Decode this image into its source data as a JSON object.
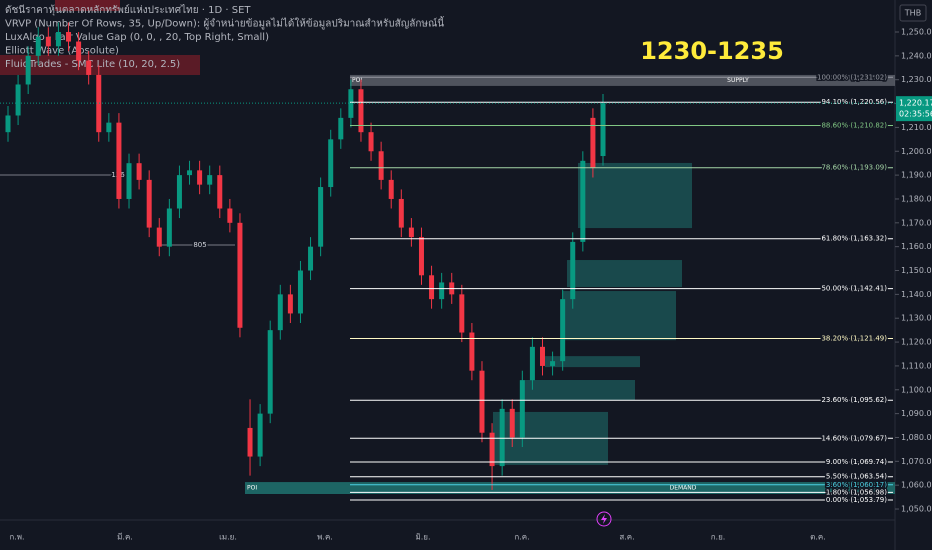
{
  "chart_data": {
    "type": "candlestick",
    "legend_lines": [
      "ดัชนีราคาหุ้นตลาดหลักทรัพย์แห่งประเทศไทย · 1D · SET",
      "VRVP (Number Of Rows, 35, Up/Down): ผู้จำหน่ายข้อมูลไม่ได้ให้ข้อมูลปริมาณสำหรับสัญลักษณ์นี้",
      "LuxAlgo - Fair Value Gap (0, 0, , 20, Top Right, Small)",
      "Elliott Wave (Absolute)",
      "FluidTrades - SMC Lite (10, 20, 2.5)"
    ],
    "annotation": "1230-1235",
    "currency": "THB",
    "categories": [
      "ก.พ.",
      "มี.ค.",
      "เม.ย.",
      "พ.ค.",
      "มิ.ย.",
      "ก.ค.",
      "ส.ค.",
      "ก.ย.",
      "ต.ค."
    ],
    "up_color": "#089981",
    "down_color": "#f23645",
    "open": [
      1208,
      1215,
      1228,
      1240,
      1248,
      1244,
      1250,
      1246,
      1238,
      1232,
      1208,
      1212,
      1180,
      1195,
      1188,
      1168,
      1160,
      1176,
      1190,
      1192,
      1186,
      1190,
      1176,
      1170,
      1084,
      1072,
      1090,
      1125,
      1140,
      1132,
      1150,
      1160,
      1185,
      1205,
      1214,
      1226,
      1208,
      1200,
      1188,
      1180,
      1168,
      1164,
      1148,
      1138,
      1145,
      1140,
      1124,
      1108,
      1082,
      1068,
      1092,
      1080,
      1104,
      1118,
      1110,
      1112,
      1138,
      1162,
      1214,
      1198
    ],
    "high": [
      1219,
      1232,
      1244,
      1252,
      1252,
      1254,
      1254,
      1250,
      1242,
      1236,
      1216,
      1216,
      1199,
      1199,
      1192,
      1172,
      1180,
      1194,
      1196,
      1196,
      1194,
      1194,
      1180,
      1174,
      1096,
      1094,
      1129,
      1144,
      1144,
      1154,
      1164,
      1189,
      1209,
      1218,
      1230,
      1230,
      1212,
      1204,
      1192,
      1184,
      1172,
      1168,
      1152,
      1149,
      1149,
      1144,
      1128,
      1112,
      1086,
      1096,
      1096,
      1108,
      1122,
      1122,
      1116,
      1142,
      1166,
      1200,
      1218,
      1224
    ],
    "low": [
      1204,
      1211,
      1224,
      1236,
      1240,
      1240,
      1242,
      1234,
      1228,
      1204,
      1204,
      1176,
      1176,
      1184,
      1164,
      1156,
      1156,
      1172,
      1186,
      1182,
      1182,
      1172,
      1166,
      1122,
      1064,
      1068,
      1086,
      1121,
      1128,
      1128,
      1146,
      1156,
      1181,
      1201,
      1210,
      1204,
      1196,
      1184,
      1176,
      1164,
      1160,
      1144,
      1134,
      1134,
      1136,
      1120,
      1104,
      1078,
      1058,
      1064,
      1076,
      1076,
      1100,
      1106,
      1106,
      1108,
      1134,
      1158,
      1189,
      1194
    ],
    "close": [
      1215,
      1228,
      1240,
      1248,
      1244,
      1250,
      1246,
      1238,
      1232,
      1208,
      1212,
      1180,
      1195,
      1188,
      1168,
      1160,
      1176,
      1190,
      1192,
      1186,
      1190,
      1176,
      1170,
      1126,
      1072,
      1090,
      1125,
      1140,
      1132,
      1150,
      1160,
      1185,
      1205,
      1214,
      1226,
      1208,
      1200,
      1188,
      1180,
      1168,
      1164,
      1148,
      1138,
      1145,
      1140,
      1124,
      1108,
      1082,
      1068,
      1092,
      1080,
      1104,
      1118,
      1110,
      1112,
      1138,
      1162,
      1196,
      1193,
      1220.17
    ],
    "last_price": {
      "value": 1220.17,
      "label": "1,220.17"
    },
    "countdown": "02:35:56",
    "ylim": [
      1045.4,
      1263.42
    ],
    "yticks": [
      {
        "value": 1050,
        "label": "1,050.00"
      },
      {
        "value": 1060,
        "label": "1,060.00"
      },
      {
        "value": 1070,
        "label": "1,070.00"
      },
      {
        "value": 1080,
        "label": "1,080.00"
      },
      {
        "value": 1090,
        "label": "1,090.00"
      },
      {
        "value": 1100,
        "label": "1,100.00"
      },
      {
        "value": 1110,
        "label": "1,110.00"
      },
      {
        "value": 1120,
        "label": "1,120.00"
      },
      {
        "value": 1130,
        "label": "1,130.00"
      },
      {
        "value": 1140,
        "label": "1,140.00"
      },
      {
        "value": 1150,
        "label": "1,150.00"
      },
      {
        "value": 1160,
        "label": "1,160.00"
      },
      {
        "value": 1170,
        "label": "1,170.00"
      },
      {
        "value": 1180,
        "label": "1,180.00"
      },
      {
        "value": 1190,
        "label": "1,190.00"
      },
      {
        "value": 1200,
        "label": "1,200.00"
      },
      {
        "value": 1210,
        "label": "1,210.00"
      },
      {
        "value": 1220,
        "label": "1,220.00"
      },
      {
        "value": 1230,
        "label": "1,230.00"
      },
      {
        "value": 1240,
        "label": "1,240.00"
      },
      {
        "value": 1250,
        "label": "1,250.00"
      }
    ],
    "fib_levels": [
      {
        "label": "100.00% (1,231.02)",
        "value": 1231.02,
        "color": "#9598a1"
      },
      {
        "label": "94.10% (1,220.56)",
        "value": 1220.56,
        "color": "#ffffff"
      },
      {
        "label": "88.60% (1,210.82)",
        "value": 1210.82,
        "color": "#81c784"
      },
      {
        "label": "78.60% (1,193.09)",
        "value": 1193.09,
        "color": "#a5d6a7"
      },
      {
        "label": "61.80% (1,163.32)",
        "value": 1163.32,
        "color": "#ffffff"
      },
      {
        "label": "50.00% (1,142.41)",
        "value": 1142.41,
        "color": "#ffffff"
      },
      {
        "label": "38.20% (1,121.49)",
        "value": 1121.49,
        "color": "#fff9c4"
      },
      {
        "label": "23.60% (1,095.62)",
        "value": 1095.62,
        "color": "#ffffff"
      },
      {
        "label": "14.60% (1,079.67)",
        "value": 1079.67,
        "color": "#ffffff"
      },
      {
        "label": "9.00% (1,069.74)",
        "value": 1069.74,
        "color": "#ffffff"
      },
      {
        "label": "5.50% (1,063.54)",
        "value": 1063.54,
        "color": "#ffffff"
      },
      {
        "label": "3.60% (1,060.17)",
        "value": 1060.17,
        "color": "#4dd0e1"
      },
      {
        "label": "1.80% (1,056.98)",
        "value": 1056.98,
        "color": "#ffffff"
      },
      {
        "label": "0.00% (1,053.79)",
        "value": 1053.79,
        "color": "#ffffff"
      }
    ],
    "supply_zone": {
      "poi": "POI",
      "label": "SUPPLY",
      "range": [
        1232.0,
        1227.4
      ]
    },
    "demand_zone": {
      "poi": "POI",
      "label": "DEMAND",
      "range": [
        1061.3,
        1056.3
      ]
    },
    "fvg_zones": [
      [
        1195.1,
        1167.8
      ],
      [
        1154.4,
        1143.1
      ],
      [
        1141.4,
        1120.8
      ],
      [
        1114.1,
        1109.5
      ],
      [
        1104.1,
        1095.7
      ],
      [
        1090.7,
        1068.5
      ]
    ],
    "swing_labels": [
      "136",
      "805"
    ]
  }
}
